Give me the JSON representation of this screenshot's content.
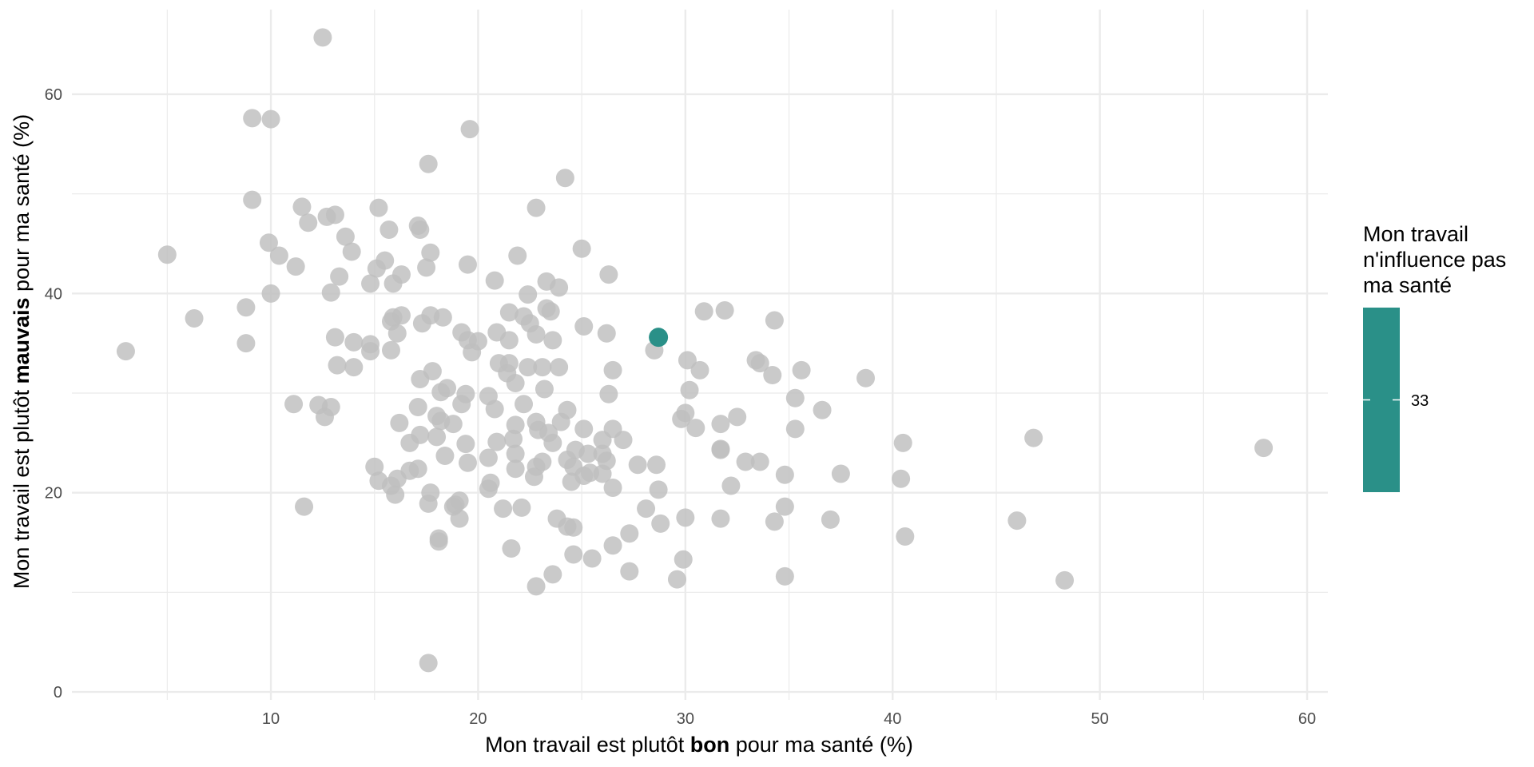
{
  "chart_data": {
    "type": "scatter",
    "xlabel": {
      "before": "Mon travail est plutôt ",
      "bold": "bon",
      "after": " pour ma santé (%)"
    },
    "ylabel": {
      "before": "Mon travail est plutôt ",
      "bold": "mauvais",
      "after": " pour ma santé (%)"
    },
    "xlim": [
      0.4,
      61
    ],
    "ylim": [
      -0.8,
      68.5
    ],
    "x_ticks": [
      10,
      20,
      30,
      40,
      50,
      60
    ],
    "y_ticks": [
      0,
      20,
      40,
      60
    ],
    "grid": true,
    "legend": {
      "title": [
        "Mon travail",
        "n'influence pas",
        "ma santé"
      ],
      "value_label": "33",
      "color": "#2a9088",
      "position": "right"
    },
    "colors": {
      "background_points": "#bebebe",
      "highlight": "#2a9088",
      "grid": "#ebebeb"
    },
    "highlight": {
      "x": 28.7,
      "y": 35.6,
      "z": 33
    },
    "points": [
      [
        12.5,
        65.7
      ],
      [
        9.1,
        57.6
      ],
      [
        10.0,
        57.5
      ],
      [
        19.6,
        56.5
      ],
      [
        17.6,
        53.0
      ],
      [
        24.2,
        51.6
      ],
      [
        9.1,
        49.4
      ],
      [
        11.5,
        48.7
      ],
      [
        15.2,
        48.6
      ],
      [
        22.8,
        48.6
      ],
      [
        12.7,
        47.7
      ],
      [
        13.1,
        47.9
      ],
      [
        11.8,
        47.1
      ],
      [
        17.1,
        46.8
      ],
      [
        17.2,
        46.4
      ],
      [
        15.7,
        46.4
      ],
      [
        13.6,
        45.7
      ],
      [
        9.9,
        45.1
      ],
      [
        25.0,
        44.5
      ],
      [
        5.0,
        43.9
      ],
      [
        10.4,
        43.8
      ],
      [
        17.7,
        44.1
      ],
      [
        13.9,
        44.2
      ],
      [
        21.9,
        43.8
      ],
      [
        15.5,
        43.3
      ],
      [
        19.5,
        42.9
      ],
      [
        11.2,
        42.7
      ],
      [
        17.5,
        42.6
      ],
      [
        15.1,
        42.5
      ],
      [
        16.3,
        41.9
      ],
      [
        13.3,
        41.7
      ],
      [
        26.3,
        41.9
      ],
      [
        20.8,
        41.3
      ],
      [
        23.3,
        41.2
      ],
      [
        14.8,
        41.0
      ],
      [
        15.9,
        41.0
      ],
      [
        23.9,
        40.6
      ],
      [
        10.0,
        40.0
      ],
      [
        12.9,
        40.1
      ],
      [
        22.4,
        39.9
      ],
      [
        8.8,
        38.6
      ],
      [
        23.3,
        38.5
      ],
      [
        21.5,
        38.1
      ],
      [
        23.5,
        38.2
      ],
      [
        30.9,
        38.2
      ],
      [
        31.9,
        38.3
      ],
      [
        17.7,
        37.8
      ],
      [
        16.3,
        37.8
      ],
      [
        18.3,
        37.6
      ],
      [
        22.2,
        37.7
      ],
      [
        6.3,
        37.5
      ],
      [
        15.9,
        37.6
      ],
      [
        15.8,
        37.2
      ],
      [
        34.3,
        37.3
      ],
      [
        17.3,
        37.0
      ],
      [
        22.5,
        37.0
      ],
      [
        25.1,
        36.7
      ],
      [
        19.2,
        36.1
      ],
      [
        16.1,
        36.0
      ],
      [
        20.9,
        36.1
      ],
      [
        22.8,
        35.9
      ],
      [
        26.2,
        36.0
      ],
      [
        13.1,
        35.6
      ],
      [
        19.5,
        35.3
      ],
      [
        20.0,
        35.2
      ],
      [
        21.5,
        35.3
      ],
      [
        23.6,
        35.3
      ],
      [
        8.8,
        35.0
      ],
      [
        14.0,
        35.1
      ],
      [
        14.8,
        34.9
      ],
      [
        3.0,
        34.2
      ],
      [
        15.8,
        34.3
      ],
      [
        19.7,
        34.1
      ],
      [
        28.5,
        34.3
      ],
      [
        14.8,
        34.2
      ],
      [
        21.0,
        33.0
      ],
      [
        33.4,
        33.3
      ],
      [
        33.6,
        33.0
      ],
      [
        30.1,
        33.3
      ],
      [
        13.2,
        32.8
      ],
      [
        14.0,
        32.6
      ],
      [
        21.5,
        33.0
      ],
      [
        22.4,
        32.6
      ],
      [
        23.9,
        32.6
      ],
      [
        23.1,
        32.6
      ],
      [
        26.5,
        32.3
      ],
      [
        30.7,
        32.3
      ],
      [
        35.6,
        32.3
      ],
      [
        17.8,
        32.2
      ],
      [
        21.4,
        32.0
      ],
      [
        34.2,
        31.8
      ],
      [
        38.7,
        31.5
      ],
      [
        17.2,
        31.4
      ],
      [
        21.8,
        31.0
      ],
      [
        30.2,
        30.3
      ],
      [
        18.5,
        30.5
      ],
      [
        18.2,
        30.1
      ],
      [
        19.4,
        29.9
      ],
      [
        23.2,
        30.4
      ],
      [
        20.5,
        29.7
      ],
      [
        26.3,
        29.9
      ],
      [
        35.3,
        29.5
      ],
      [
        11.1,
        28.9
      ],
      [
        12.3,
        28.8
      ],
      [
        12.9,
        28.6
      ],
      [
        17.1,
        28.6
      ],
      [
        19.2,
        28.9
      ],
      [
        20.8,
        28.4
      ],
      [
        22.2,
        28.9
      ],
      [
        24.3,
        28.3
      ],
      [
        30.0,
        28.0
      ],
      [
        36.6,
        28.3
      ],
      [
        12.6,
        27.6
      ],
      [
        18.0,
        27.7
      ],
      [
        18.2,
        27.2
      ],
      [
        16.2,
        27.0
      ],
      [
        18.8,
        26.9
      ],
      [
        21.8,
        26.8
      ],
      [
        22.8,
        27.1
      ],
      [
        24.0,
        27.1
      ],
      [
        29.8,
        27.4
      ],
      [
        32.5,
        27.6
      ],
      [
        31.7,
        26.9
      ],
      [
        25.1,
        26.4
      ],
      [
        26.5,
        26.4
      ],
      [
        30.5,
        26.5
      ],
      [
        35.3,
        26.4
      ],
      [
        17.2,
        25.8
      ],
      [
        18.0,
        25.6
      ],
      [
        22.9,
        26.3
      ],
      [
        23.4,
        26.0
      ],
      [
        23.6,
        25.0
      ],
      [
        21.7,
        25.4
      ],
      [
        20.9,
        25.1
      ],
      [
        26.0,
        25.3
      ],
      [
        27.0,
        25.3
      ],
      [
        19.4,
        24.9
      ],
      [
        40.5,
        25.0
      ],
      [
        46.8,
        25.5
      ],
      [
        57.9,
        24.5
      ],
      [
        16.7,
        25.0
      ],
      [
        24.7,
        24.3
      ],
      [
        26.0,
        23.9
      ],
      [
        31.7,
        24.4
      ],
      [
        31.7,
        24.3
      ],
      [
        18.4,
        23.7
      ],
      [
        21.8,
        23.9
      ],
      [
        24.3,
        23.3
      ],
      [
        25.3,
        23.9
      ],
      [
        26.2,
        23.2
      ],
      [
        19.5,
        23.0
      ],
      [
        20.5,
        23.5
      ],
      [
        22.8,
        22.6
      ],
      [
        25.4,
        22.0
      ],
      [
        27.7,
        22.8
      ],
      [
        28.6,
        22.8
      ],
      [
        32.9,
        23.1
      ],
      [
        33.6,
        23.1
      ],
      [
        15.0,
        22.6
      ],
      [
        16.7,
        22.2
      ],
      [
        17.1,
        22.4
      ],
      [
        21.8,
        22.4
      ],
      [
        23.1,
        23.1
      ],
      [
        24.6,
        22.6
      ],
      [
        22.7,
        21.6
      ],
      [
        25.1,
        21.7
      ],
      [
        26.0,
        21.9
      ],
      [
        34.8,
        21.8
      ],
      [
        37.5,
        21.9
      ],
      [
        40.4,
        21.4
      ],
      [
        15.2,
        21.2
      ],
      [
        16.1,
        21.4
      ],
      [
        15.8,
        20.7
      ],
      [
        20.6,
        21.0
      ],
      [
        24.5,
        21.1
      ],
      [
        26.5,
        20.5
      ],
      [
        28.7,
        20.3
      ],
      [
        32.2,
        20.7
      ],
      [
        16.0,
        19.8
      ],
      [
        17.7,
        20.0
      ],
      [
        20.5,
        20.4
      ],
      [
        11.6,
        18.6
      ],
      [
        17.6,
        18.9
      ],
      [
        18.8,
        18.6
      ],
      [
        18.9,
        18.8
      ],
      [
        19.1,
        19.2
      ],
      [
        21.2,
        18.4
      ],
      [
        22.1,
        18.5
      ],
      [
        28.1,
        18.4
      ],
      [
        34.8,
        18.6
      ],
      [
        19.1,
        17.4
      ],
      [
        23.8,
        17.4
      ],
      [
        28.8,
        16.9
      ],
      [
        30.0,
        17.5
      ],
      [
        31.7,
        17.4
      ],
      [
        34.3,
        17.1
      ],
      [
        37.0,
        17.3
      ],
      [
        46.0,
        17.2
      ],
      [
        24.3,
        16.6
      ],
      [
        24.6,
        16.5
      ],
      [
        27.3,
        15.9
      ],
      [
        40.6,
        15.6
      ],
      [
        18.1,
        15.4
      ],
      [
        18.1,
        15.1
      ],
      [
        21.6,
        14.4
      ],
      [
        26.5,
        14.7
      ],
      [
        24.6,
        13.8
      ],
      [
        25.5,
        13.4
      ],
      [
        29.9,
        13.3
      ],
      [
        23.6,
        11.8
      ],
      [
        27.3,
        12.1
      ],
      [
        29.6,
        11.3
      ],
      [
        34.8,
        11.6
      ],
      [
        48.3,
        11.2
      ],
      [
        22.8,
        10.6
      ],
      [
        17.6,
        2.9
      ]
    ]
  }
}
